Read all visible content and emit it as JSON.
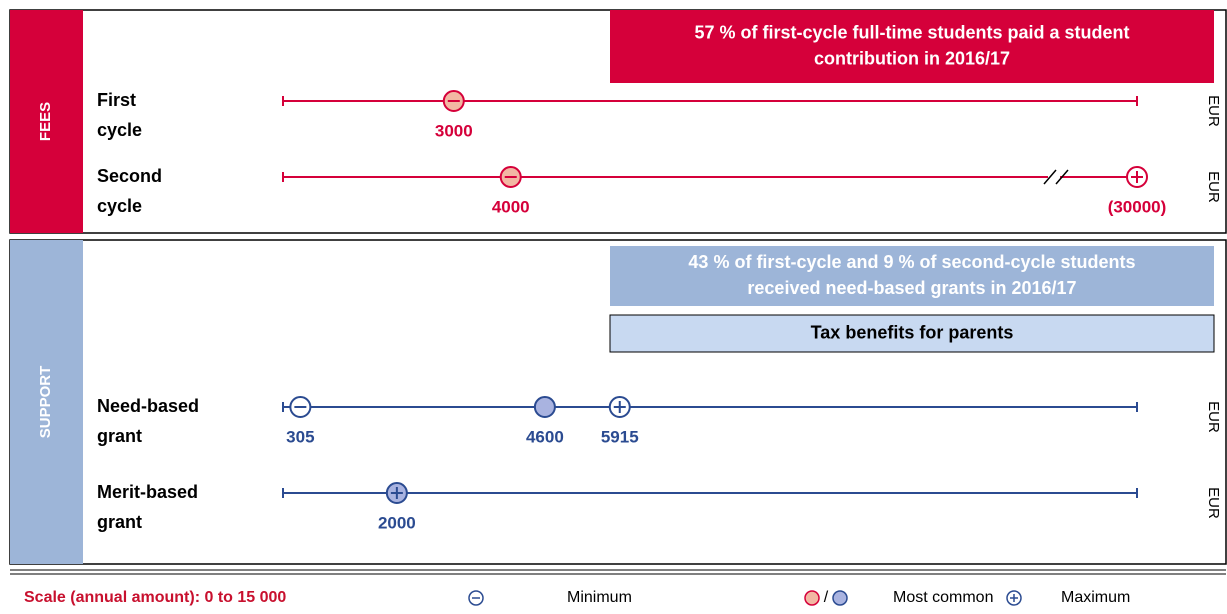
{
  "chart_data": {
    "type": "scale",
    "xlim": [
      0,
      15000
    ],
    "unit": "EUR",
    "sections": [
      {
        "name": "FEES",
        "color": "#d5003a",
        "side_color": "#d5003a",
        "common_fill": "#f2b7a3",
        "notes": [
          {
            "lines": [
              "57 % of first-cycle full-time students paid a student",
              "contribution in 2016/17"
            ],
            "fill": "#d5003a",
            "text_color": "#ffffff"
          }
        ],
        "rows": [
          {
            "label": [
              "First",
              "cycle"
            ],
            "points": [
              {
                "kinds": [
                  "min",
                  "common"
                ],
                "value": 3000
              }
            ]
          },
          {
            "label": [
              "Second",
              "cycle"
            ],
            "axis_break": true,
            "points": [
              {
                "kinds": [
                  "min",
                  "common"
                ],
                "value": 4000
              },
              {
                "kinds": [
                  "max"
                ],
                "value": 30000,
                "value_label": "(30000)"
              }
            ]
          }
        ]
      },
      {
        "name": "SUPPORT",
        "color": "#2b4b91",
        "side_color": "#9db5d8",
        "common_fill": "#a9b3e0",
        "notes": [
          {
            "lines": [
              "43 % of first-cycle and 9 % of second-cycle students",
              "received need-based grants in 2016/17"
            ],
            "fill": "#9db5d8",
            "text_color": "#ffffff"
          },
          {
            "lines": [
              "Tax benefits for parents"
            ],
            "fill": "#c8d9f1",
            "text_color": "#000000"
          }
        ],
        "rows": [
          {
            "label": [
              "Need-based",
              "grant"
            ],
            "points": [
              {
                "kinds": [
                  "min"
                ],
                "value": 305
              },
              {
                "kinds": [
                  "common"
                ],
                "value": 4600
              },
              {
                "kinds": [
                  "max"
                ],
                "value": 5915
              }
            ]
          },
          {
            "label": [
              "Merit-based",
              "grant"
            ],
            "points": [
              {
                "kinds": [
                  "max",
                  "common"
                ],
                "value": 2000
              }
            ]
          }
        ]
      }
    ],
    "legend": {
      "scale": "Scale (annual amount): 0 to 15 000",
      "min": "Minimum",
      "separator": "/",
      "common": "Most common",
      "max": "Maximum"
    }
  }
}
